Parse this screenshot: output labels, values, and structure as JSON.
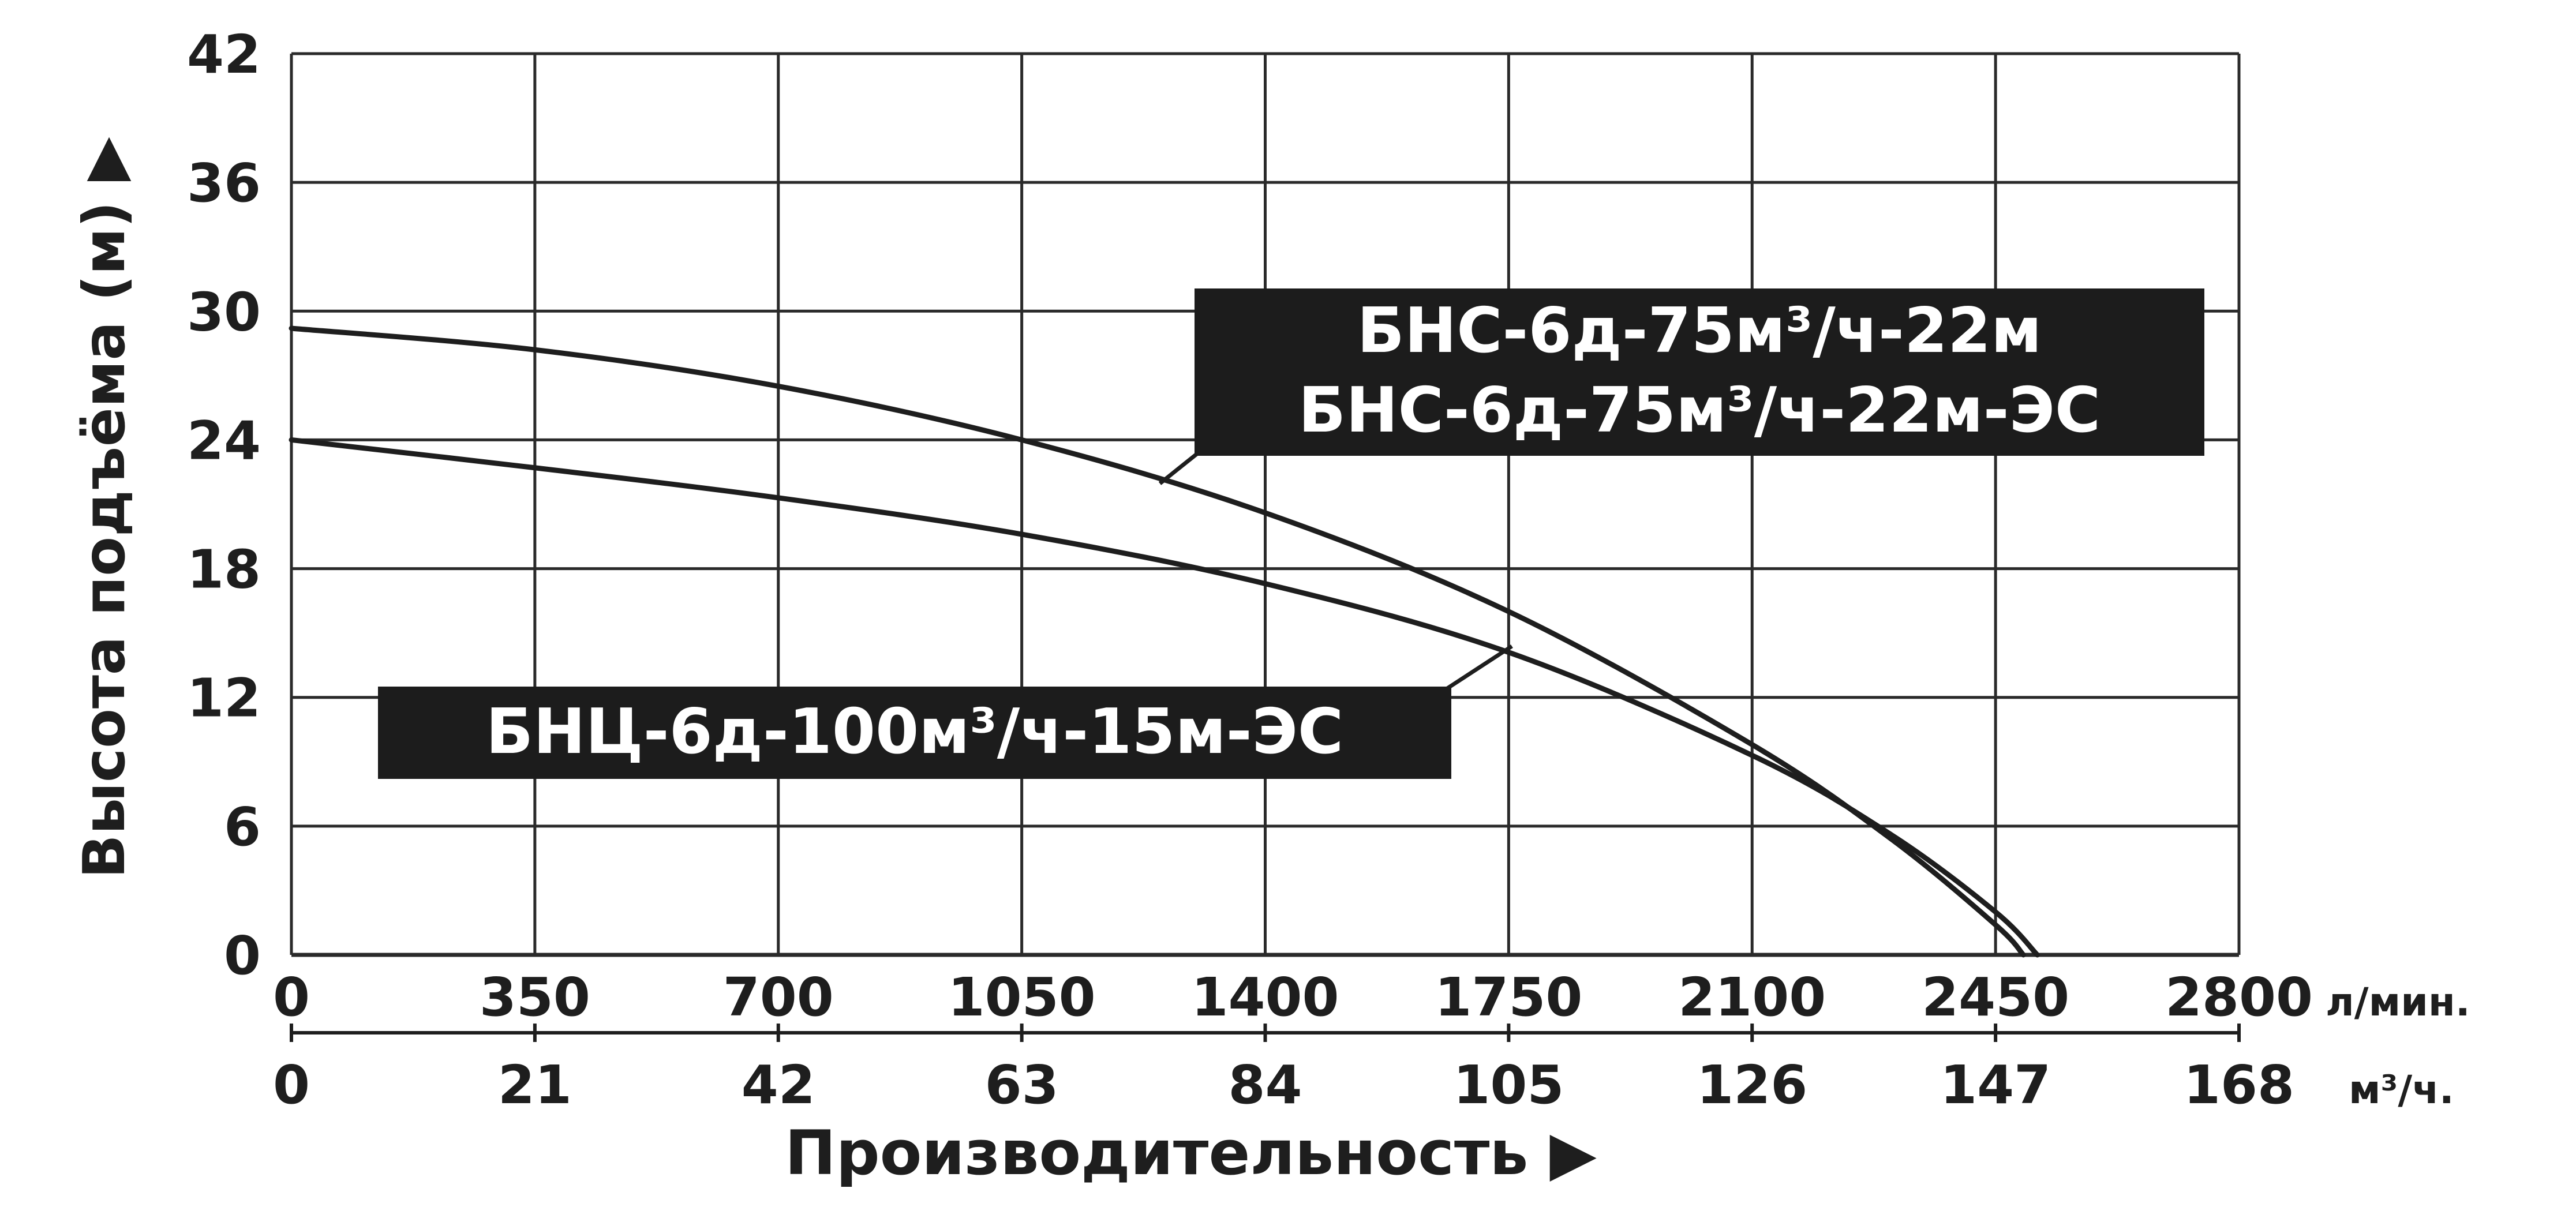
{
  "chart_data": {
    "type": "line",
    "ylabel": "Высота подъёма (м)",
    "xlabel": "Производительность",
    "ylim": [
      0,
      42
    ],
    "yticks": [
      "0",
      "6",
      "12",
      "18",
      "24",
      "30",
      "36",
      "42"
    ],
    "xlim": [
      0,
      2800
    ],
    "xticks_lmin": [
      "0",
      "350",
      "700",
      "1050",
      "1400",
      "1750",
      "2100",
      "2450",
      "2800"
    ],
    "xticks_m3h": [
      "0",
      "21",
      "42",
      "63",
      "84",
      "105",
      "126",
      "147",
      "168"
    ],
    "x_unit_lmin": "л/мин.",
    "x_unit_m3h": "м³/ч.",
    "grid": true,
    "series": [
      {
        "name": "БНС-6д-75м³/ч-22м / БНС-6д-75м³/ч-22м-ЭС",
        "x": [
          0,
          350,
          700,
          1050,
          1400,
          1750,
          2100,
          2300,
          2450,
          2490
        ],
        "y": [
          29.2,
          28.2,
          26.5,
          24.0,
          20.6,
          16.0,
          9.8,
          5.4,
          1.4,
          0
        ]
      },
      {
        "name": "БНЦ-6д-100м³/ч-15м-ЭС",
        "x": [
          0,
          350,
          700,
          1050,
          1400,
          1750,
          2100,
          2300,
          2450,
          2510
        ],
        "y": [
          24.0,
          22.7,
          21.3,
          19.6,
          17.3,
          14.1,
          9.3,
          5.6,
          2.0,
          0
        ]
      }
    ],
    "labels": {
      "upper_line1": "БНС-6д-75м³/ч-22м",
      "upper_line2": "БНС-6д-75м³/ч-22м-ЭС",
      "lower": "БНЦ-6д-100м³/ч-15м-ЭС"
    },
    "colors": {
      "line": "#1e1e1e",
      "grid": "#2a2a2a",
      "label_bg": "#1c1c1c",
      "label_text": "#ffffff"
    }
  }
}
